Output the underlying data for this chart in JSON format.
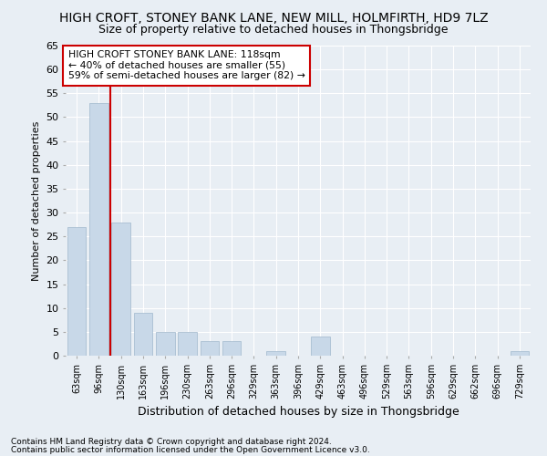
{
  "title": "HIGH CROFT, STONEY BANK LANE, NEW MILL, HOLMFIRTH, HD9 7LZ",
  "subtitle": "Size of property relative to detached houses in Thongsbridge",
  "xlabel": "Distribution of detached houses by size in Thongsbridge",
  "ylabel": "Number of detached properties",
  "footer_line1": "Contains HM Land Registry data © Crown copyright and database right 2024.",
  "footer_line2": "Contains public sector information licensed under the Open Government Licence v3.0.",
  "annotation_line1": "HIGH CROFT STONEY BANK LANE: 118sqm",
  "annotation_line2": "← 40% of detached houses are smaller (55)",
  "annotation_line3": "59% of semi-detached houses are larger (82) →",
  "bar_color": "#c8d8e8",
  "bar_edge_color": "#a0b8cc",
  "vline_color": "#cc0000",
  "vline_position": 1.5,
  "categories": [
    "63sqm",
    "96sqm",
    "130sqm",
    "163sqm",
    "196sqm",
    "230sqm",
    "263sqm",
    "296sqm",
    "329sqm",
    "363sqm",
    "396sqm",
    "429sqm",
    "463sqm",
    "496sqm",
    "529sqm",
    "563sqm",
    "596sqm",
    "629sqm",
    "662sqm",
    "696sqm",
    "729sqm"
  ],
  "values": [
    27,
    53,
    28,
    9,
    5,
    5,
    3,
    3,
    0,
    1,
    0,
    4,
    0,
    0,
    0,
    0,
    0,
    0,
    0,
    0,
    1
  ],
  "ylim": [
    0,
    65
  ],
  "yticks": [
    0,
    5,
    10,
    15,
    20,
    25,
    30,
    35,
    40,
    45,
    50,
    55,
    60,
    65
  ],
  "background_color": "#e8eef4",
  "plot_bg_color": "#e8eef4",
  "grid_color": "#ffffff",
  "title_fontsize": 10,
  "subtitle_fontsize": 9
}
